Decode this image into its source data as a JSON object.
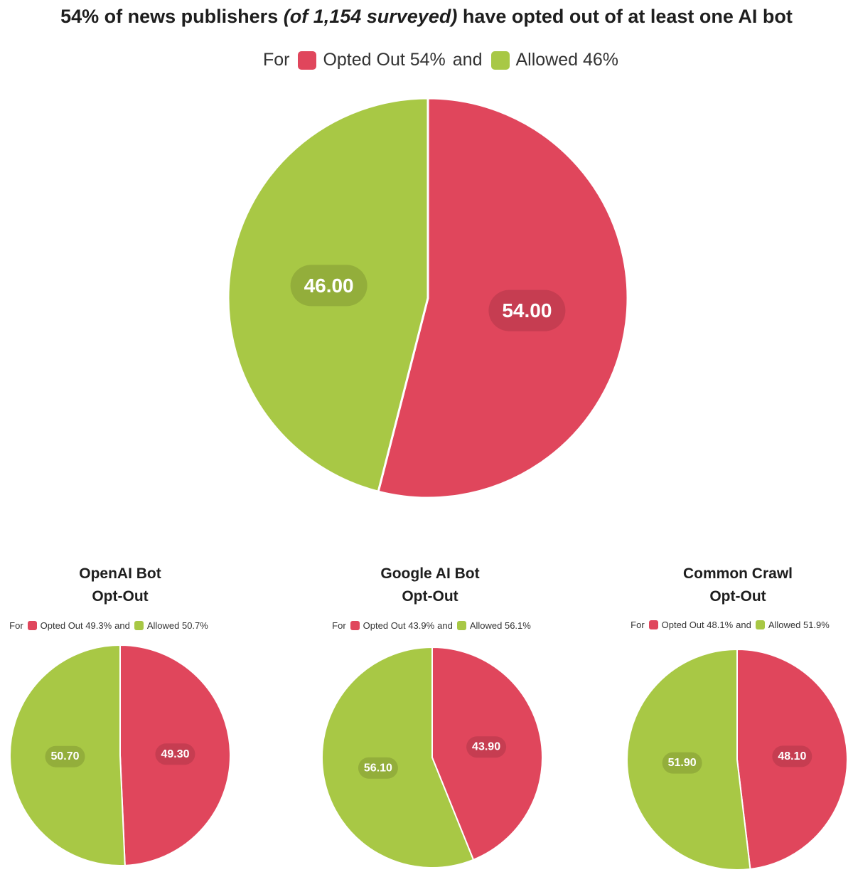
{
  "title": {
    "prefix": "54% of news publishers ",
    "emphasis": "(of 1,154 surveyed)",
    "suffix": " have opted out of at least one AI bot"
  },
  "colors": {
    "opted_out": "#e0465c",
    "allowed": "#a8c845",
    "opted_out_label_bg": "#c63d51",
    "allowed_label_bg": "#93ae3b"
  },
  "legend_words": {
    "for": "For",
    "and": "and"
  },
  "chart_data": [
    {
      "type": "pie",
      "title": "",
      "legend": {
        "opted_out": "Opted Out 54%",
        "allowed": "Allowed 46%"
      },
      "labels": [
        "Opted Out",
        "Allowed"
      ],
      "values": [
        54.0,
        46.0
      ],
      "value_labels": [
        "54.00",
        "46.00"
      ]
    },
    {
      "type": "pie",
      "title_lines": [
        "OpenAI Bot",
        "Opt-Out"
      ],
      "legend": {
        "opted_out": "Opted Out 49.3%",
        "allowed": "Allowed 50.7%"
      },
      "labels": [
        "Opted Out",
        "Allowed"
      ],
      "values": [
        49.3,
        50.7
      ],
      "value_labels": [
        "49.30",
        "50.70"
      ]
    },
    {
      "type": "pie",
      "title_lines": [
        "Google AI Bot",
        "Opt-Out"
      ],
      "legend": {
        "opted_out": "Opted Out 43.9%",
        "allowed": "Allowed 56.1%"
      },
      "labels": [
        "Opted Out",
        "Allowed"
      ],
      "values": [
        43.9,
        56.1
      ],
      "value_labels": [
        "43.90",
        "56.10"
      ]
    },
    {
      "type": "pie",
      "title_lines": [
        "Common Crawl",
        "Opt-Out"
      ],
      "legend": {
        "opted_out": "Opted Out 48.1%",
        "allowed": "Allowed 51.9%"
      },
      "labels": [
        "Opted Out",
        "Allowed"
      ],
      "values": [
        48.1,
        51.9
      ],
      "value_labels": [
        "48.10",
        "51.90"
      ]
    }
  ]
}
